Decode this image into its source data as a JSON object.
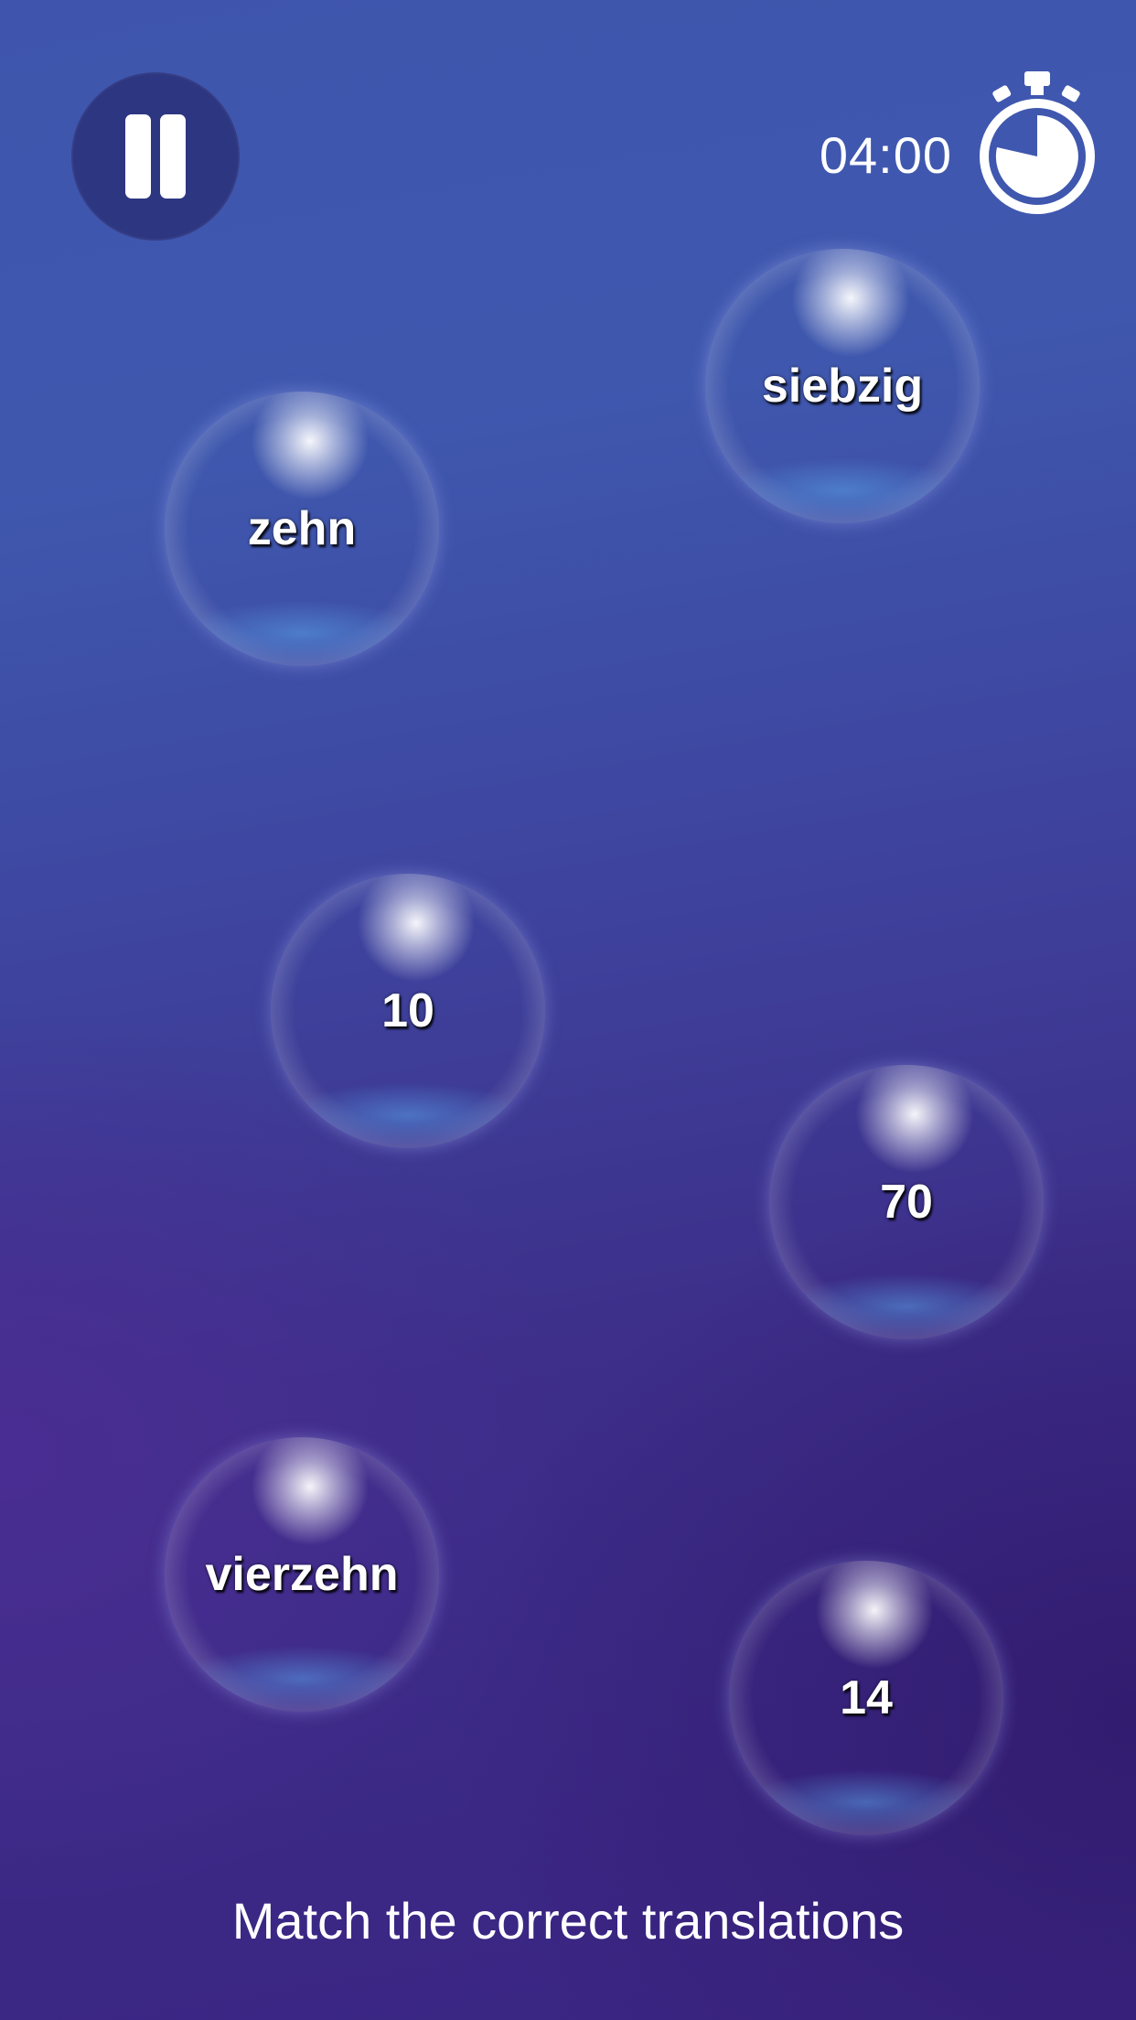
{
  "header": {
    "pause_label": "Pause",
    "timer": "04:00"
  },
  "bubbles": [
    {
      "text": "siebzig"
    },
    {
      "text": "zehn"
    },
    {
      "text": "10"
    },
    {
      "text": "70"
    },
    {
      "text": "vierzehn"
    },
    {
      "text": "14"
    }
  ],
  "footer": {
    "instruction": "Match the correct translations"
  },
  "icons": {
    "pause": "pause-icon",
    "timer": "stopwatch-icon"
  },
  "colors": {
    "background_top": "#3f58ae",
    "background_bottom": "#3a2482",
    "pause_button": "#2d3680",
    "text": "#ffffff"
  }
}
